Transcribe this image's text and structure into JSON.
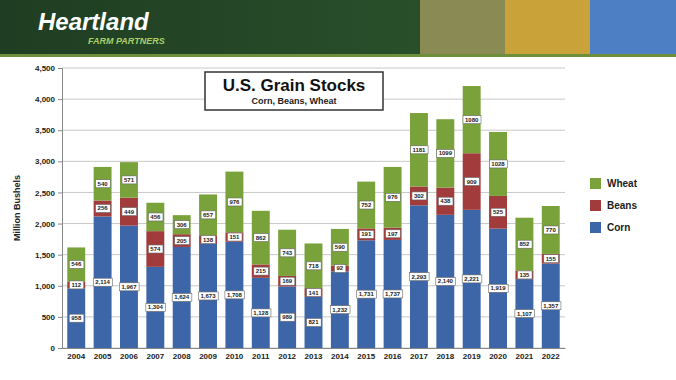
{
  "header": {
    "brand": "Heartland",
    "tagline": "FARM PARTNERS"
  },
  "chart_data": {
    "type": "bar",
    "stacked": true,
    "data_labels": true,
    "grid": true,
    "legend": "right",
    "title": "U.S. Grain Stocks",
    "subtitle": "Corn, Beans, Wheat",
    "y_label": "Million Bushels",
    "categories": [
      "2004",
      "2005",
      "2006",
      "2007",
      "2008",
      "2009",
      "2010",
      "2011",
      "2012",
      "2013",
      "2014",
      "2015",
      "2016",
      "2017",
      "2018",
      "2019",
      "2020",
      "2021",
      "2022"
    ],
    "series": [
      {
        "name": "Corn",
        "color": "#3d66a8",
        "values": [
          958,
          2114,
          1967,
          1304,
          1624,
          1673,
          1708,
          1128,
          989,
          821,
          1232,
          1731,
          1737,
          2293,
          2140,
          2221,
          1919,
          1107,
          1357
        ],
        "value_labels": [
          "958",
          "2,114",
          "1,967",
          "1,304",
          "1,624",
          "1,673",
          "1,708",
          "1,128",
          "989",
          "821",
          "1,232",
          "1,731",
          "1,737",
          "2,293",
          "2,140",
          "2,221",
          "1,919",
          "1,107",
          "1,357"
        ]
      },
      {
        "name": "Beans",
        "color": "#a23b3b",
        "values": [
          112,
          256,
          449,
          574,
          205,
          138,
          151,
          215,
          169,
          141,
          92,
          191,
          197,
          302,
          438,
          909,
          525,
          135,
          155
        ]
      },
      {
        "name": "Wheat",
        "color": "#7aa23a",
        "values": [
          546,
          540,
          571,
          456,
          306,
          657,
          976,
          862,
          743,
          718,
          590,
          752,
          976,
          1181,
          1099,
          1080,
          1028,
          852,
          770
        ]
      }
    ],
    "ylim": [
      0,
      4500
    ],
    "yticks": [
      0,
      500,
      {
        "value": 1000,
        "label": "1,000"
      },
      {
        "value": 1500,
        "label": "1,500"
      },
      {
        "value": 2000,
        "label": "2,000"
      },
      {
        "value": 2500,
        "label": "2,500"
      },
      {
        "value": 3000,
        "label": "3,000"
      },
      {
        "value": 3500,
        "label": "3,500"
      },
      {
        "value": 4000,
        "label": "4,000"
      },
      {
        "value": 4500,
        "label": "4,500"
      }
    ]
  }
}
